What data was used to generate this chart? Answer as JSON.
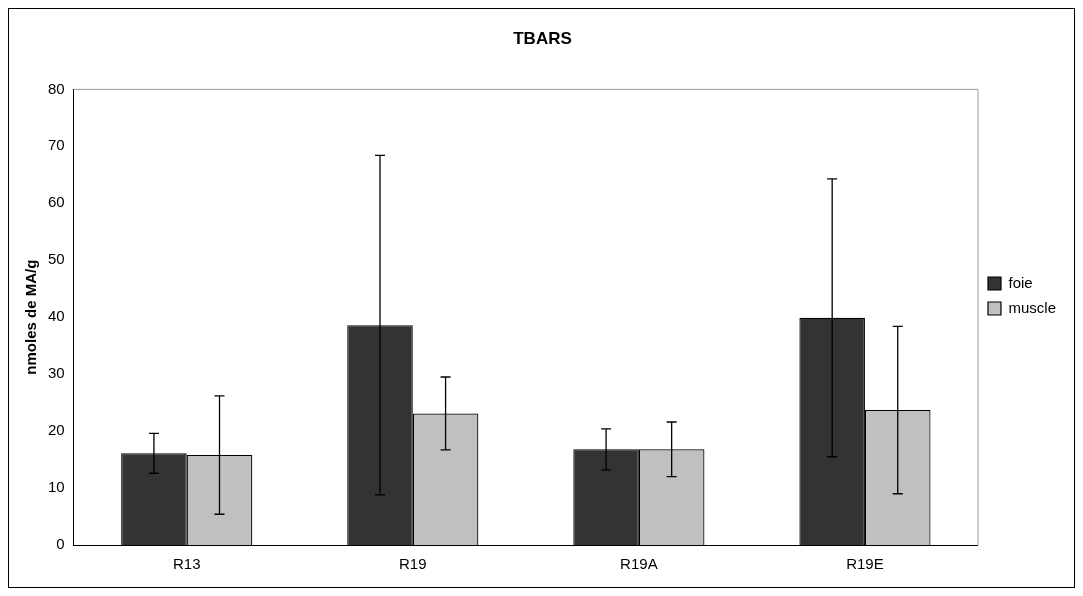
{
  "chart_data": {
    "type": "bar",
    "title": "TBARS",
    "ylabel": "nmoles de MA/g",
    "categories": [
      "R13",
      "R19",
      "R19A",
      "R19E"
    ],
    "series": [
      {
        "name": "foie",
        "color": "#333333",
        "values": [
          16.1,
          38.6,
          16.8,
          39.9
        ],
        "errors": [
          3.5,
          29.8,
          3.6,
          24.4
        ]
      },
      {
        "name": "muscle",
        "color": "#c0c0c0",
        "values": [
          15.8,
          23.1,
          16.8,
          23.7
        ],
        "errors": [
          10.4,
          6.4,
          4.8,
          14.7
        ]
      }
    ],
    "ylim": [
      0,
      80
    ],
    "yticks": [
      0,
      10,
      20,
      30,
      40,
      50,
      60,
      70,
      80
    ],
    "grid": false,
    "legend": "right"
  }
}
